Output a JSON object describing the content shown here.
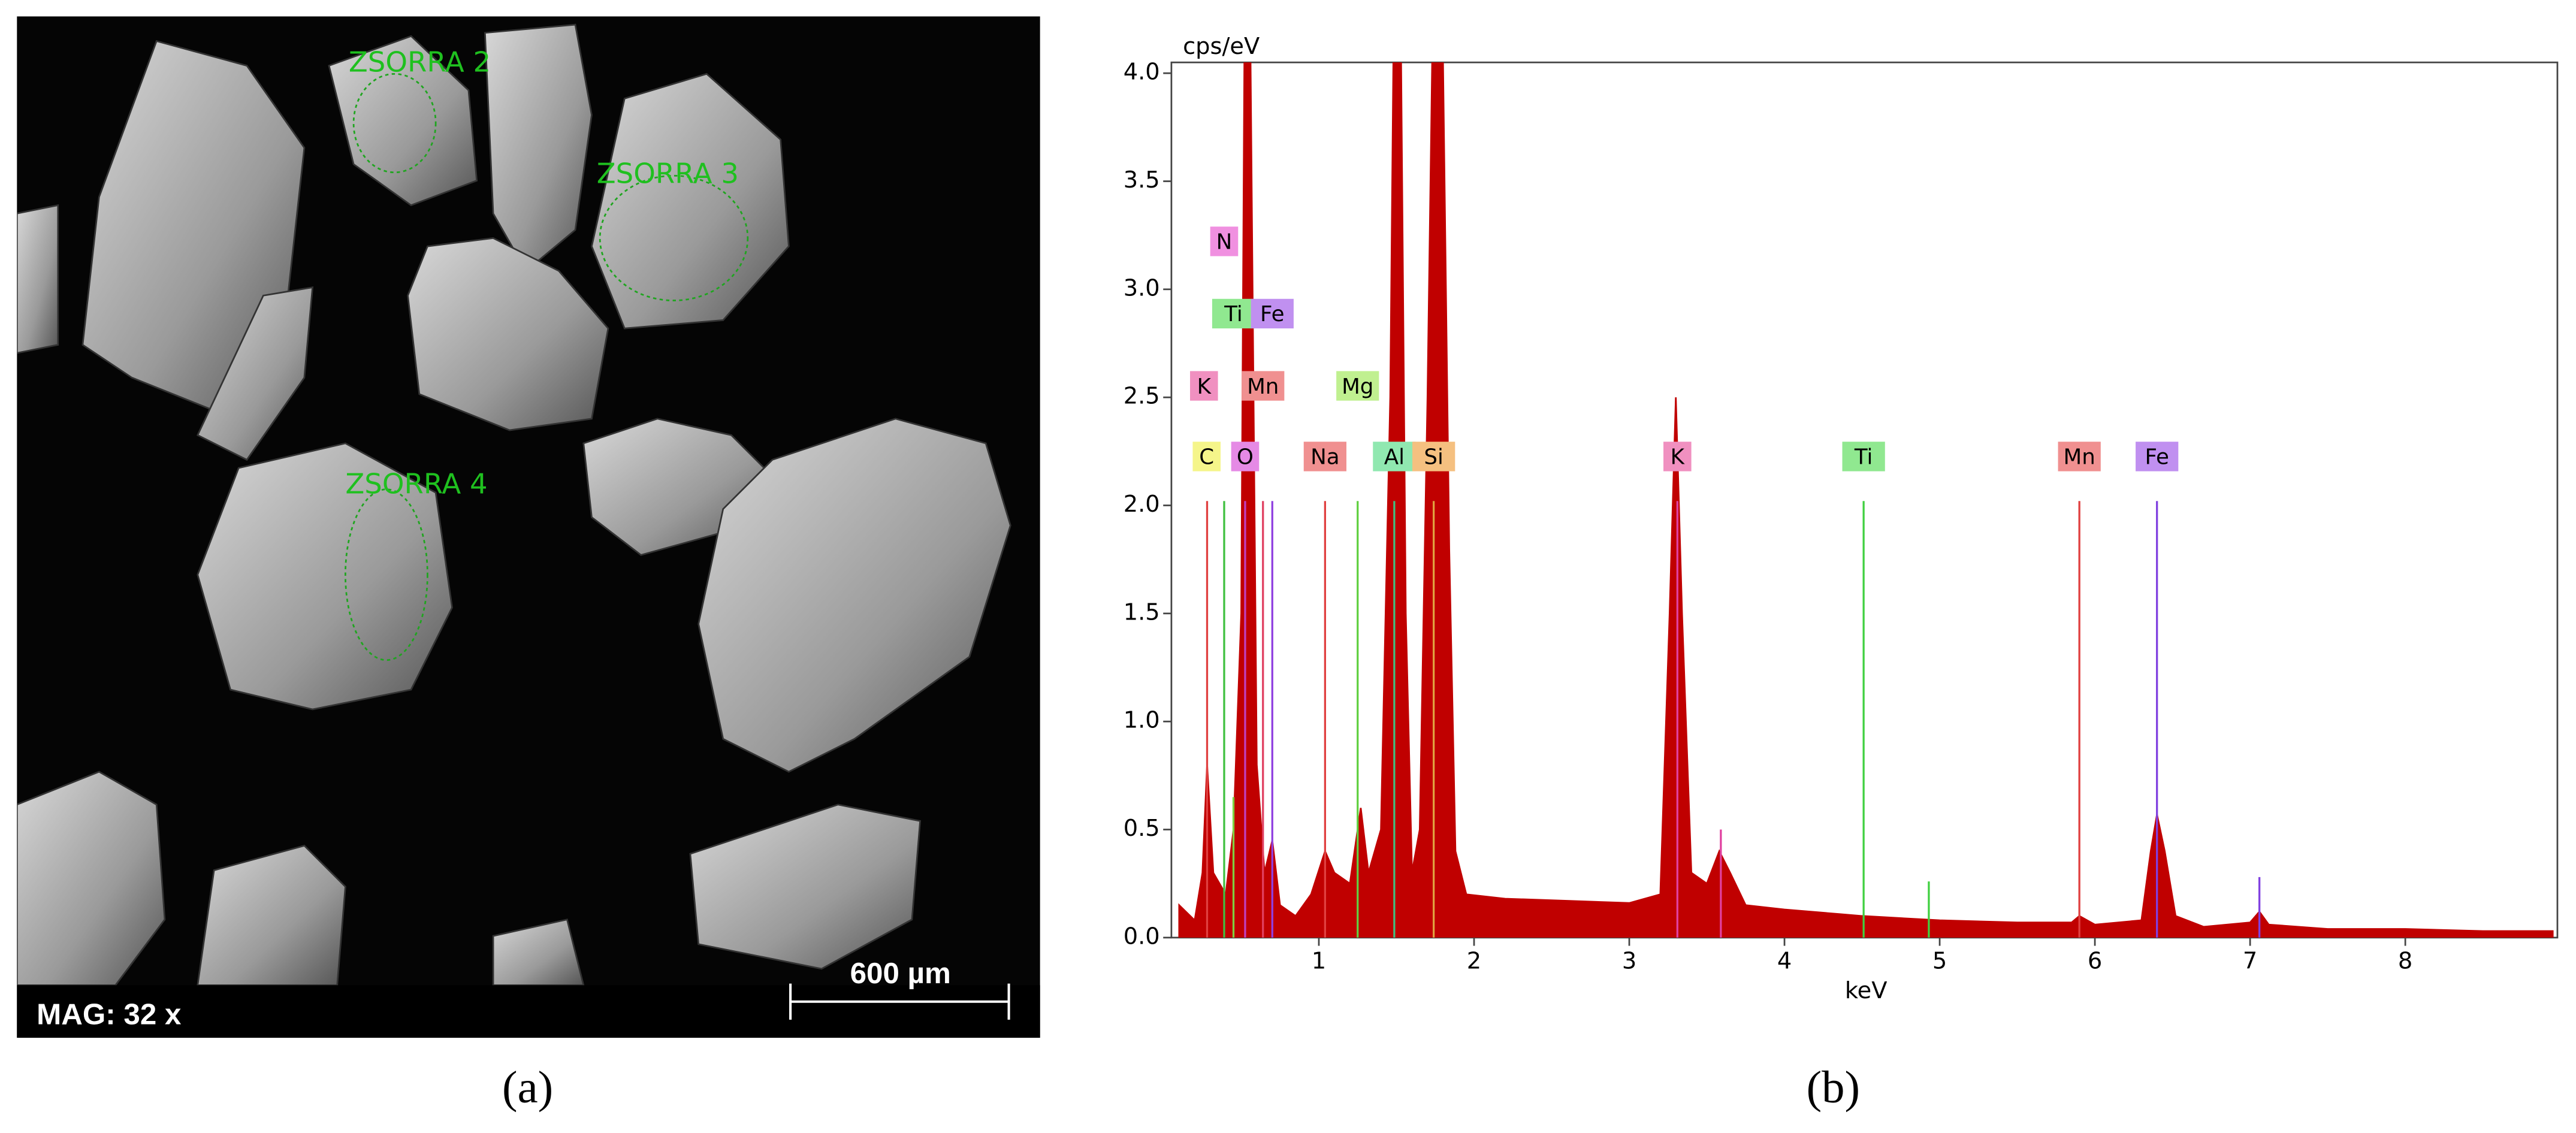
{
  "sem": {
    "labels": [
      "ZSORRA 2",
      "ZSORRA 3",
      "ZSORRA 4"
    ],
    "magnification": "MAG: 32 x",
    "scale_bar": "600 µm",
    "caption": "(a)"
  },
  "chart_data": {
    "type": "area",
    "caption": "(b)",
    "y_label": "cps/eV",
    "x_label": "keV",
    "color": "#c00000",
    "x": [
      0.1,
      0.2,
      0.25,
      0.28,
      0.32,
      0.4,
      0.45,
      0.5,
      0.52,
      0.56,
      0.6,
      0.65,
      0.7,
      0.75,
      0.85,
      0.95,
      1.04,
      1.1,
      1.2,
      1.27,
      1.32,
      1.4,
      1.46,
      1.48,
      1.53,
      1.56,
      1.6,
      1.65,
      1.7,
      1.73,
      1.8,
      1.84,
      1.88,
      1.95,
      2.2,
      2.6,
      3.0,
      3.2,
      3.26,
      3.3,
      3.34,
      3.4,
      3.5,
      3.58,
      3.65,
      3.75,
      4.0,
      4.5,
      5.0,
      5.5,
      5.85,
      5.9,
      6.0,
      6.3,
      6.36,
      6.4,
      6.45,
      6.52,
      6.7,
      7.0,
      7.06,
      7.12,
      7.5,
      8.0,
      8.5,
      8.95
    ],
    "values": [
      0.15,
      0.08,
      0.3,
      0.8,
      0.3,
      0.2,
      0.5,
      1.5,
      4.05,
      4.05,
      0.8,
      0.3,
      0.45,
      0.15,
      0.1,
      0.2,
      0.4,
      0.3,
      0.25,
      0.6,
      0.3,
      0.5,
      2.5,
      4.05,
      4.05,
      1.5,
      0.3,
      0.5,
      2.5,
      4.05,
      4.05,
      1.8,
      0.4,
      0.2,
      0.18,
      0.17,
      0.16,
      0.2,
      1.5,
      2.5,
      1.5,
      0.3,
      0.25,
      0.4,
      0.3,
      0.15,
      0.13,
      0.1,
      0.08,
      0.07,
      0.07,
      0.1,
      0.06,
      0.08,
      0.4,
      0.57,
      0.4,
      0.1,
      0.05,
      0.07,
      0.12,
      0.06,
      0.04,
      0.04,
      0.03,
      0.03
    ],
    "xlim": [
      0.05,
      8.98
    ],
    "xticks": [
      1,
      2,
      3,
      4,
      5,
      6,
      7,
      8
    ],
    "ylim": [
      0,
      4.05
    ],
    "yticks": [
      {
        "value": 0,
        "label": "0.0"
      },
      {
        "value": 0.5,
        "label": "0.5"
      },
      {
        "value": 1,
        "label": "1.0"
      },
      {
        "value": 1.5,
        "label": "1.5"
      },
      {
        "value": 2,
        "label": "2.0"
      },
      {
        "value": 2.5,
        "label": "2.5"
      },
      {
        "value": 3,
        "label": "3.0"
      },
      {
        "value": 3.5,
        "label": "3.5"
      },
      {
        "value": 4,
        "label": "4.0"
      }
    ],
    "element_lines": [
      {
        "energy": 0.28,
        "height": 2.02,
        "color": "#e04040"
      },
      {
        "energy": 0.39,
        "height": 2.02,
        "color": "#40c040"
      },
      {
        "energy": 0.45,
        "height": 0.65,
        "color": "#80d040"
      },
      {
        "energy": 0.525,
        "height": 2.02,
        "color": "#c040c0"
      },
      {
        "energy": 0.64,
        "height": 2.02,
        "color": "#e04060"
      },
      {
        "energy": 0.7,
        "height": 2.02,
        "color": "#9040e0"
      },
      {
        "energy": 1.04,
        "height": 2.02,
        "color": "#e04040"
      },
      {
        "energy": 1.25,
        "height": 2.02,
        "color": "#60d040"
      },
      {
        "energy": 1.486,
        "height": 2.02,
        "color": "#40c080"
      },
      {
        "energy": 1.74,
        "height": 2.02,
        "color": "#e0a040"
      },
      {
        "energy": 3.31,
        "height": 2.02,
        "color": "#e040a0"
      },
      {
        "energy": 3.59,
        "height": 0.5,
        "color": "#e040a0"
      },
      {
        "energy": 4.51,
        "height": 2.02,
        "color": "#40d040"
      },
      {
        "energy": 4.93,
        "height": 0.26,
        "color": "#40d040"
      },
      {
        "energy": 5.9,
        "height": 2.02,
        "color": "#e04040"
      },
      {
        "energy": 6.4,
        "height": 2.02,
        "color": "#8040e0"
      },
      {
        "energy": 7.06,
        "height": 0.28,
        "color": "#8040e0"
      }
    ],
    "element_label_rows": [
      [
        {
          "label": "N",
          "energy": 0.39,
          "color": "#f090e0"
        }
      ],
      [
        {
          "label": "Ti",
          "energy": 0.45,
          "color": "#90e890"
        },
        {
          "label": "Fe",
          "energy": 0.7,
          "color": "#c090f0"
        }
      ],
      [
        {
          "label": "K",
          "energy": 0.26,
          "color": "#f090c0"
        },
        {
          "label": "Mn",
          "energy": 0.64,
          "color": "#f09090"
        },
        {
          "label": "Mg",
          "energy": 1.25,
          "color": "#c0f090"
        }
      ],
      [
        {
          "label": "C",
          "energy": 0.277,
          "color": "#f5f58a"
        },
        {
          "label": "O",
          "energy": 0.525,
          "color": "#e58ae5"
        },
        {
          "label": "Na",
          "energy": 1.04,
          "color": "#f09090"
        },
        {
          "label": "Al",
          "energy": 1.486,
          "color": "#90e8b0"
        },
        {
          "label": "Si",
          "energy": 1.74,
          "color": "#f5c080"
        },
        {
          "label": "K",
          "energy": 3.31,
          "color": "#f090c0"
        },
        {
          "label": "Ti",
          "energy": 4.51,
          "color": "#90e890"
        },
        {
          "label": "Mn",
          "energy": 5.9,
          "color": "#f09090"
        },
        {
          "label": "Fe",
          "energy": 6.4,
          "color": "#c090f0"
        }
      ]
    ]
  }
}
